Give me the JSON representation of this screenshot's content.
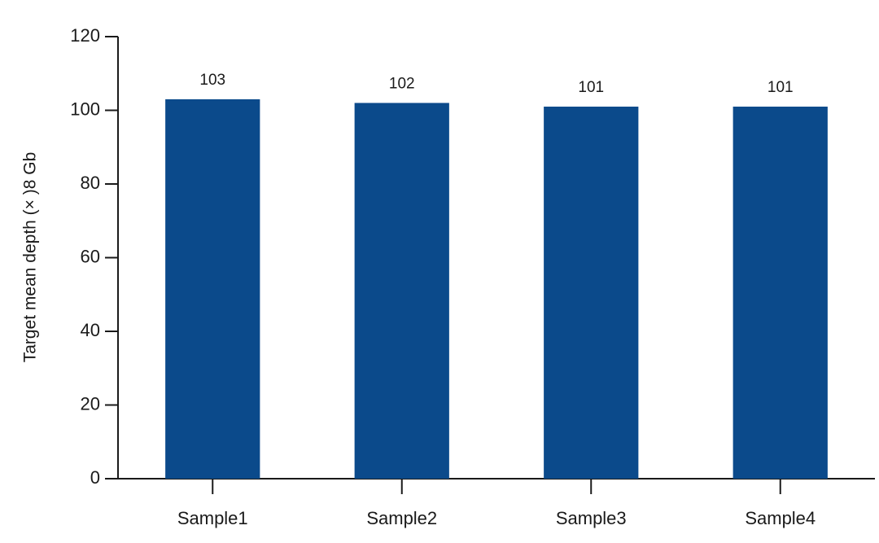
{
  "chart_data": {
    "type": "bar",
    "y_label": "Target mean depth (× )8 Gb",
    "categories": [
      "Sample1",
      "Sample2",
      "Sample3",
      "Sample4"
    ],
    "values": [
      103,
      102,
      101,
      101
    ],
    "color": "#0b4a8b",
    "ylim": [
      0,
      120
    ],
    "yticks": [
      0,
      20,
      40,
      60,
      80,
      100,
      120
    ],
    "grid": false
  }
}
